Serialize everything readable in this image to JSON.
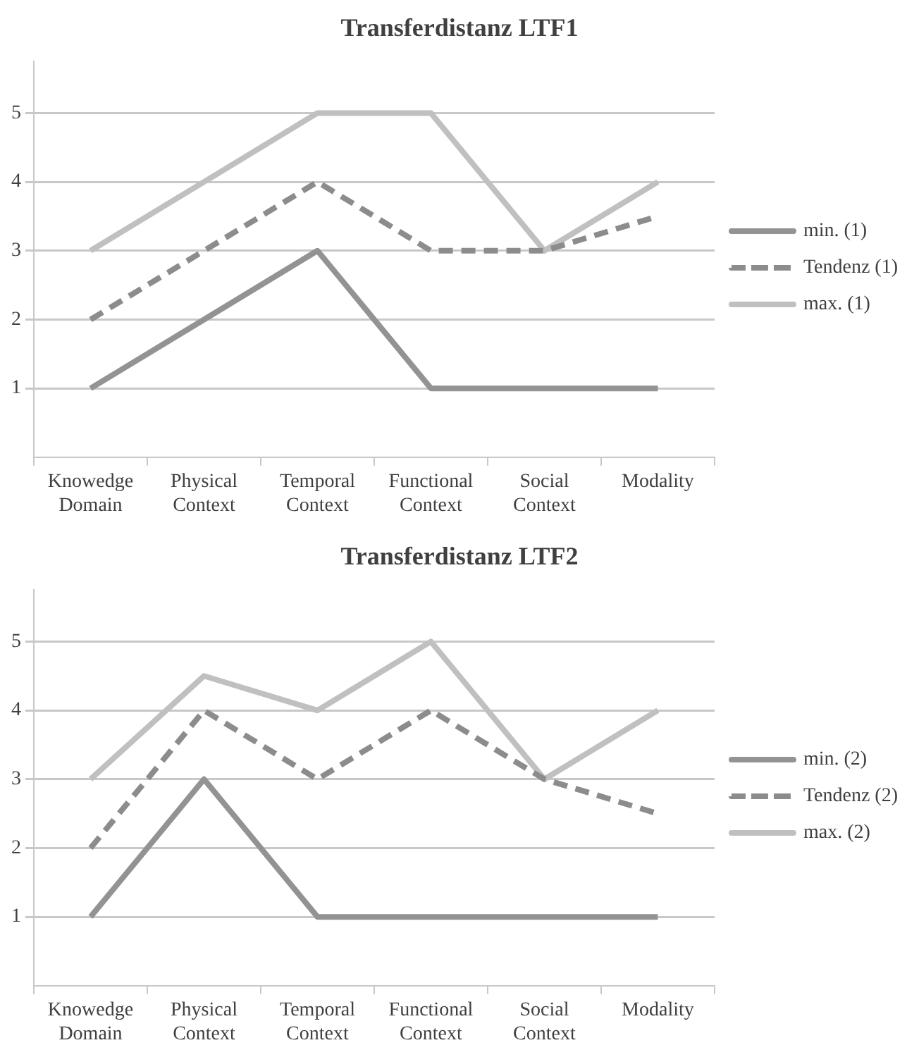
{
  "chart_data": [
    {
      "type": "line",
      "title": "Transferdistanz LTF1",
      "categories": [
        "Knowedge Domain",
        "Physical Context",
        "Temporal Context",
        "Functional Context",
        "Social Context",
        "Modality"
      ],
      "series": [
        {
          "name": "min. (1)",
          "color": "#939393",
          "line_style": "solid",
          "values": [
            1,
            2,
            3,
            1,
            1,
            1
          ]
        },
        {
          "name": "Tendenz (1)",
          "color": "#8c8c8c",
          "line_style": "dashed",
          "values": [
            2,
            3,
            4,
            3,
            3,
            3.5
          ]
        },
        {
          "name": "max. (1)",
          "color": "#c0c0c0",
          "line_style": "solid",
          "values": [
            3,
            4,
            5,
            5,
            3,
            4
          ]
        }
      ],
      "ylim": [
        0,
        5.75
      ],
      "yticks": [
        {
          "value": 0,
          "label": null
        },
        1,
        2,
        3,
        4,
        5
      ],
      "grid": "y",
      "legend": "right",
      "marker": "none"
    },
    {
      "type": "line",
      "title": "Transferdistanz LTF2",
      "categories": [
        "Knowedge Domain",
        "Physical Context",
        "Temporal Context",
        "Functional Context",
        "Social Context",
        "Modality"
      ],
      "series": [
        {
          "name": "min. (2)",
          "color": "#939393",
          "line_style": "solid",
          "values": [
            1,
            3,
            1,
            1,
            1,
            1
          ]
        },
        {
          "name": "Tendenz (2)",
          "color": "#8c8c8c",
          "line_style": "dashed",
          "values": [
            2,
            4,
            3,
            4,
            3,
            2.5
          ]
        },
        {
          "name": "max. (2)",
          "color": "#c0c0c0",
          "line_style": "solid",
          "values": [
            3,
            4.5,
            4,
            5,
            3,
            4
          ]
        }
      ],
      "ylim": [
        0,
        5.75
      ],
      "yticks": [
        {
          "value": 0,
          "label": null
        },
        1,
        2,
        3,
        4,
        5
      ],
      "grid": "y",
      "legend": "right",
      "marker": "none"
    }
  ]
}
